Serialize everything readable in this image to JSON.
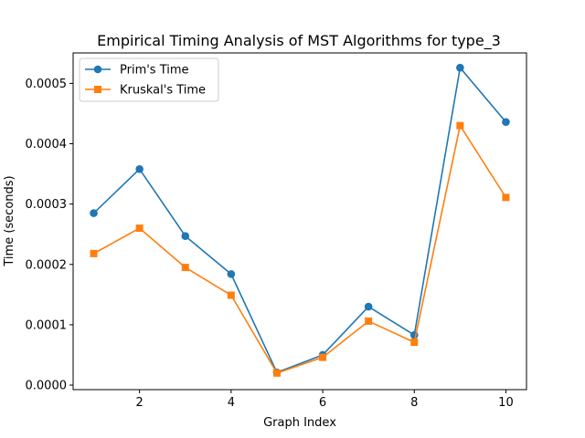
{
  "chart_data": {
    "type": "line",
    "title": "Empirical Timing Analysis of MST Algorithms for type_3",
    "xlabel": "Graph Index",
    "ylabel": "Time (seconds)",
    "xlim": [
      0.55,
      10.45
    ],
    "ylim": [
      -7.5e-06,
      0.0005505
    ],
    "x": [
      1,
      2,
      3,
      4,
      5,
      6,
      7,
      8,
      9,
      10
    ],
    "xticks": [
      2,
      4,
      6,
      8,
      10
    ],
    "xtick_labels": [
      "2",
      "4",
      "6",
      "8",
      "10"
    ],
    "yticks": [
      0.0,
      0.0001,
      0.0002,
      0.0003,
      0.0004,
      0.0005
    ],
    "ytick_labels": [
      "0.0000",
      "0.0001",
      "0.0002",
      "0.0003",
      "0.0004",
      "0.0005"
    ],
    "grid": false,
    "legend_position": "top-left",
    "series": [
      {
        "name": "Prim's Time",
        "marker": "circle",
        "color": "#1f77b4",
        "values": [
          0.000285,
          0.000358,
          0.000247,
          0.000184,
          2.1e-05,
          5e-05,
          0.00013,
          8.3e-05,
          0.000526,
          0.000436
        ]
      },
      {
        "name": "Kruskal's Time",
        "marker": "square",
        "color": "#ff7f0e",
        "values": [
          0.000218,
          0.00026,
          0.000195,
          0.000149,
          2e-05,
          4.6e-05,
          0.000106,
          7.1e-05,
          0.00043,
          0.000311
        ]
      }
    ]
  }
}
